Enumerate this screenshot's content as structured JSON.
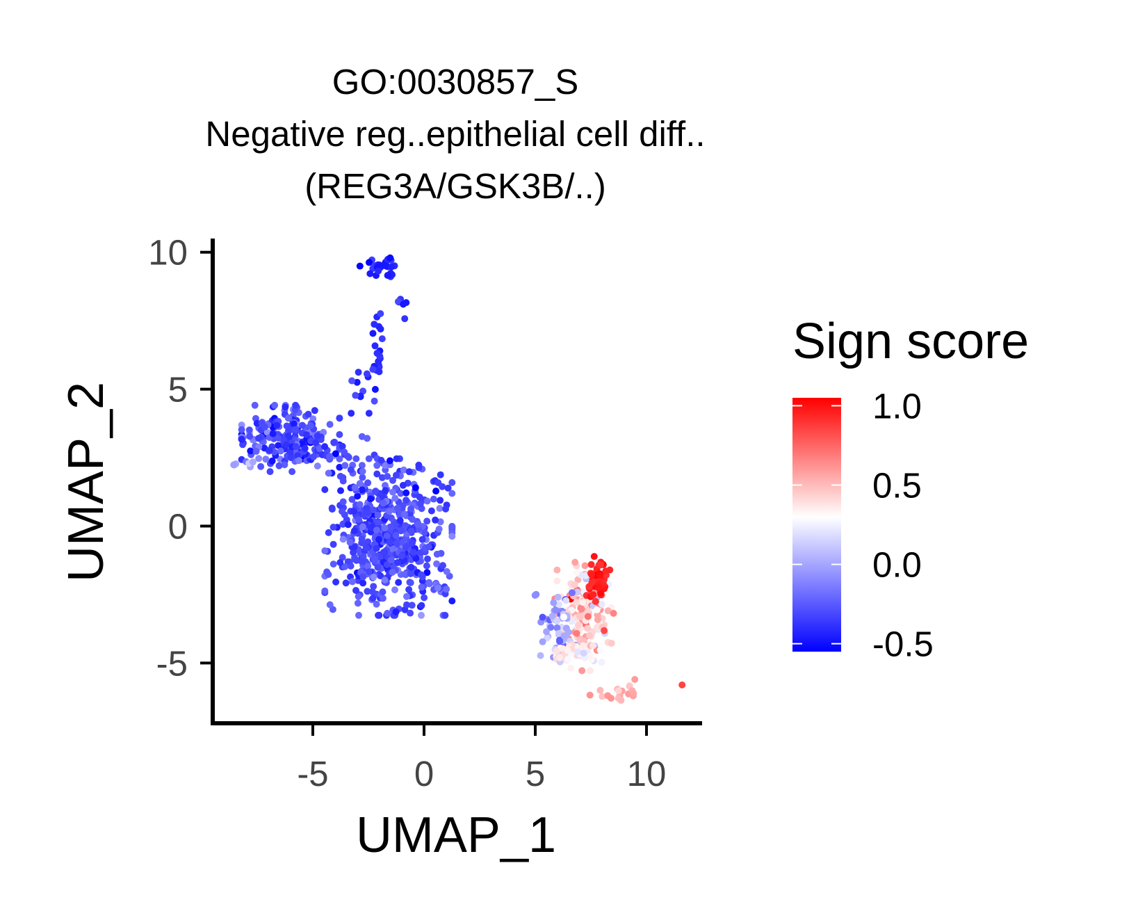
{
  "chart_data": {
    "type": "scatter",
    "title": [
      "GO:0030857_S",
      "Negative reg..epithelial cell diff..",
      "(REG3A/GSK3B/..)"
    ],
    "xlabel": "UMAP_1",
    "ylabel": "UMAP_2",
    "xlim": [
      -9.5,
      12.5
    ],
    "ylim": [
      -7.2,
      10.5
    ],
    "xticks": [
      -5,
      0,
      5,
      10
    ],
    "yticks": [
      -5,
      0,
      5,
      10
    ],
    "xtick_labels": [
      "-5",
      "0",
      "5",
      "10"
    ],
    "ytick_labels": [
      "-5",
      "0",
      "5",
      "10"
    ],
    "grid": false,
    "legend": {
      "title": "Sign score",
      "position": "right",
      "range": [
        -0.55,
        1.05
      ],
      "ticks": [
        1.0,
        0.5,
        0.0,
        -0.5
      ],
      "tick_labels": [
        "1.0",
        "0.5",
        "0.0",
        "-0.5"
      ],
      "colors": {
        "low": "#0000ff",
        "mid": "#ffffff",
        "high": "#ff0000"
      },
      "midpoint": 0.3
    },
    "clusters": [
      {
        "name": "top-arm",
        "center": [
          -2.0,
          9.4
        ],
        "spread": [
          0.4,
          0.2
        ],
        "n": 30,
        "score": -0.45,
        "score_sd": 0.05
      },
      {
        "name": "top-arm-side",
        "center": [
          -1.0,
          8.1
        ],
        "spread": [
          0.15,
          0.3
        ],
        "n": 6,
        "score": -0.42,
        "score_sd": 0.05
      },
      {
        "name": "stalk",
        "center": [
          -2.1,
          6.5
        ],
        "spread": [
          0.15,
          0.7
        ],
        "n": 18,
        "score": -0.4,
        "score_sd": 0.05
      },
      {
        "name": "stalk-lower",
        "center": [
          -2.8,
          5.0
        ],
        "spread": [
          0.35,
          0.4
        ],
        "n": 14,
        "score": -0.33,
        "score_sd": 0.08
      },
      {
        "name": "left-blob",
        "center": [
          -6.0,
          3.2
        ],
        "spread": [
          1.0,
          0.55
        ],
        "n": 230,
        "score": -0.3,
        "score_sd": 0.1
      },
      {
        "name": "left-tail",
        "center": [
          -7.9,
          2.3
        ],
        "spread": [
          0.35,
          0.15
        ],
        "n": 8,
        "score": -0.05,
        "score_sd": 0.1
      },
      {
        "name": "bridge",
        "center": [
          -3.5,
          2.5
        ],
        "spread": [
          0.8,
          0.35
        ],
        "n": 22,
        "score": -0.3,
        "score_sd": 0.08
      },
      {
        "name": "central-blob",
        "center": [
          -1.6,
          -0.4
        ],
        "spread": [
          1.3,
          1.3
        ],
        "n": 560,
        "score": -0.3,
        "score_sd": 0.08
      },
      {
        "name": "central-tail",
        "center": [
          0.5,
          -2.3
        ],
        "spread": [
          0.4,
          0.12
        ],
        "n": 10,
        "score": -0.25,
        "score_sd": 0.08
      },
      {
        "name": "right-core",
        "center": [
          7.2,
          -3.3
        ],
        "spread": [
          0.6,
          0.9
        ],
        "n": 170,
        "score": 0.45,
        "score_sd": 0.18
      },
      {
        "name": "right-top",
        "center": [
          7.8,
          -1.9
        ],
        "spread": [
          0.25,
          0.4
        ],
        "n": 45,
        "score": 0.95,
        "score_sd": 0.05
      },
      {
        "name": "right-left",
        "center": [
          6.0,
          -3.7
        ],
        "spread": [
          0.4,
          0.6
        ],
        "n": 50,
        "score": 0.02,
        "score_sd": 0.12
      },
      {
        "name": "right-bottom",
        "center": [
          6.7,
          -4.6
        ],
        "spread": [
          0.6,
          0.25
        ],
        "n": 45,
        "score": 0.32,
        "score_sd": 0.08
      },
      {
        "name": "right-tail",
        "center": [
          8.7,
          -6.0
        ],
        "spread": [
          0.6,
          0.2
        ],
        "n": 18,
        "score": 0.55,
        "score_sd": 0.08
      },
      {
        "name": "outlier-right",
        "center": [
          11.6,
          -5.8
        ],
        "spread": [
          0.0,
          0.0
        ],
        "n": 1,
        "score": 0.85,
        "score_sd": 0.0
      },
      {
        "name": "outlier-left",
        "center": [
          5.0,
          -2.5
        ],
        "spread": [
          0.05,
          0.05
        ],
        "n": 2,
        "score": -0.1,
        "score_sd": 0.05
      }
    ]
  }
}
